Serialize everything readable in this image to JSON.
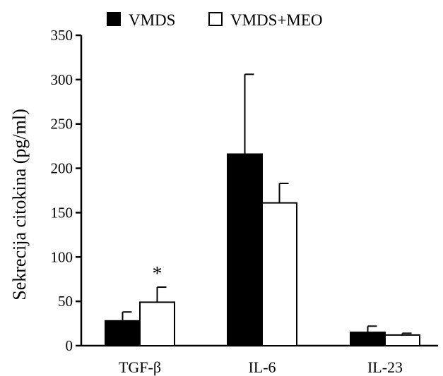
{
  "chart_data": {
    "type": "bar",
    "categories": [
      "TGF-β",
      "IL-6",
      "IL-23"
    ],
    "series": [
      {
        "name": "VMDS",
        "values": [
          28,
          216,
          15
        ],
        "errors": [
          10,
          90,
          7
        ],
        "fill": "#000000"
      },
      {
        "name": "VMDS+MEO",
        "values": [
          49,
          161,
          12
        ],
        "errors": [
          17,
          22,
          2
        ],
        "fill": "#ffffff"
      }
    ],
    "ylabel": "Sekrecija citokina (pg/ml)",
    "xlabel": "",
    "ylim": [
      0,
      350
    ],
    "yticks": [
      0,
      50,
      100,
      150,
      200,
      250,
      300,
      350
    ],
    "grid": false,
    "legend_position": "top",
    "annotations": [
      {
        "text": "*",
        "category": "TGF-β",
        "series": "VMDS+MEO"
      }
    ]
  }
}
